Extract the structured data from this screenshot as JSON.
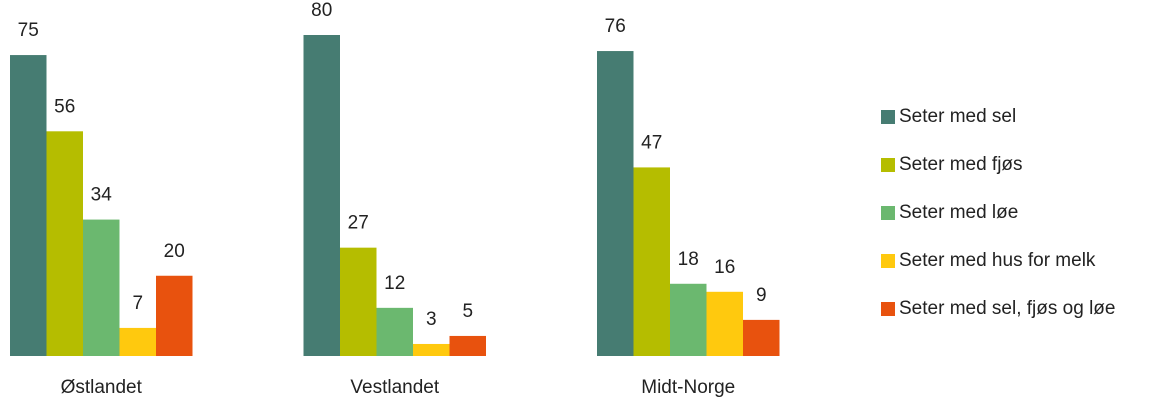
{
  "chart_data": {
    "type": "bar",
    "categories": [
      "Østlandet",
      "Vestlandet",
      "Midt-Norge"
    ],
    "series": [
      {
        "name": "Seter med sel",
        "color": "#467c72",
        "values": [
          75,
          80,
          76
        ]
      },
      {
        "name": "Seter med fjøs",
        "color": "#b5bd00",
        "values": [
          56,
          27,
          47
        ]
      },
      {
        "name": "Seter med løe",
        "color": "#6bb86f",
        "values": [
          34,
          12,
          18
        ]
      },
      {
        "name": "Seter med hus for melk",
        "color": "#ffc90e",
        "values": [
          7,
          3,
          16
        ]
      },
      {
        "name": "Seter med sel, fjøs og løe",
        "color": "#e8520e",
        "values": [
          20,
          5,
          9
        ]
      }
    ],
    "ylim": [
      0,
      80
    ],
    "legend": "right"
  }
}
